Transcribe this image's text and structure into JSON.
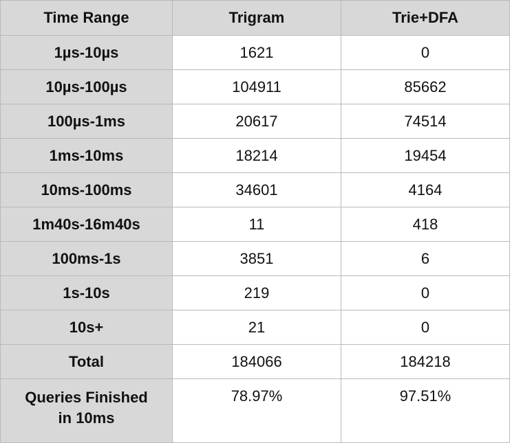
{
  "table": {
    "headers": [
      "Time Range",
      "Trigram",
      "Trie+DFA"
    ],
    "rows": [
      [
        "1µs-10µs",
        "1621",
        "0"
      ],
      [
        "10µs-100µs",
        "104911",
        "85662"
      ],
      [
        "100µs-1ms",
        "20617",
        "74514"
      ],
      [
        "1ms-10ms",
        "18214",
        "19454"
      ],
      [
        "10ms-100ms",
        "34601",
        "4164"
      ],
      [
        "1m40s-16m40s",
        "11",
        "418"
      ],
      [
        "100ms-1s",
        "3851",
        "6"
      ],
      [
        "1s-10s",
        "219",
        "0"
      ],
      [
        "10s+",
        "21",
        "0"
      ],
      [
        "Total",
        "184066",
        "184218"
      ]
    ],
    "last_row": {
      "label_line1": "Queries Finished",
      "label_line2": "in 10ms",
      "trigram": "78.97%",
      "trie_dfa": "97.51%"
    }
  }
}
